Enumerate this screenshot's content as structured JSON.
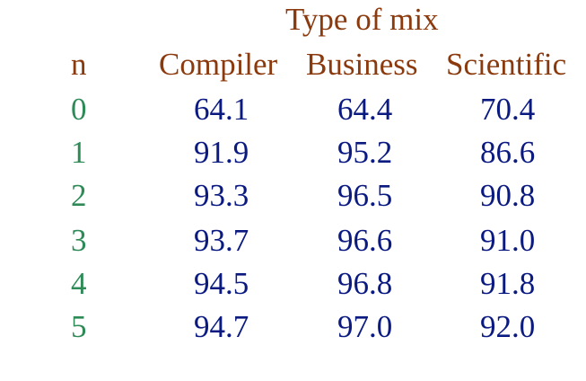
{
  "title": "Type of mix",
  "headers": {
    "n": "n",
    "compiler": "Compiler",
    "business": "Business",
    "scientific": "Scientific"
  },
  "rows": [
    {
      "n": "0",
      "compiler": "64.1",
      "business": "64.4",
      "scientific": "70.4"
    },
    {
      "n": "1",
      "compiler": "91.9",
      "business": "95.2",
      "scientific": "86.6"
    },
    {
      "n": "2",
      "compiler": "93.3",
      "business": "96.5",
      "scientific": "90.8"
    },
    {
      "n": "3",
      "compiler": "93.7",
      "business": "96.6",
      "scientific": "91.0"
    },
    {
      "n": "4",
      "compiler": "94.5",
      "business": "96.8",
      "scientific": "91.8"
    },
    {
      "n": "5",
      "compiler": "94.7",
      "business": "97.0",
      "scientific": "92.0"
    }
  ],
  "colors": {
    "header": "#8b3a0e",
    "n_column": "#2e8b57",
    "values": "#0a1a80"
  }
}
